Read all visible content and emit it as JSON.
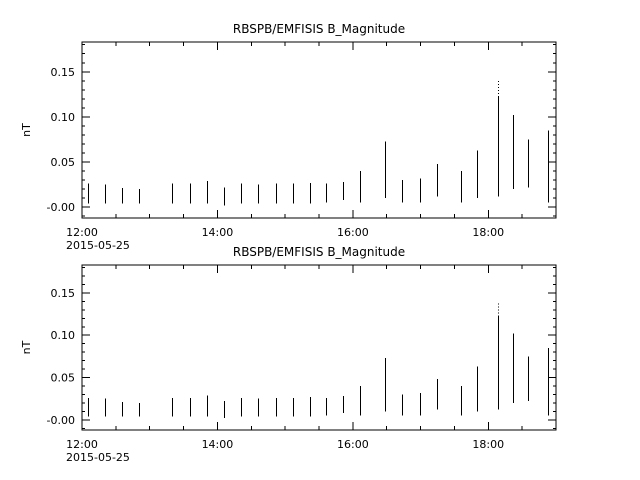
{
  "page": {
    "background": "#ffffff",
    "axis_color": "#000000",
    "bar_color": "#000000"
  },
  "chart_data": [
    {
      "type": "bar",
      "title": "RBSPB/EMFISIS  B_Magnitude",
      "ylabel": "nT",
      "date_label": "2015-05-25",
      "xlim": [
        12.0,
        19.0
      ],
      "ylim": [
        -0.012,
        0.183
      ],
      "x_ticks": [
        {
          "value": 12,
          "label": "12:00"
        },
        {
          "value": 14,
          "label": "14:00"
        },
        {
          "value": 16,
          "label": "16:00"
        },
        {
          "value": 18,
          "label": "18:00"
        }
      ],
      "x_minor_step": 0.5,
      "y_ticks": [
        {
          "value": 0.0,
          "label": "-0.00"
        },
        {
          "value": 0.05,
          "label": "0.05"
        },
        {
          "value": 0.1,
          "label": "0.10"
        },
        {
          "value": 0.15,
          "label": "0.15"
        }
      ],
      "y_minor_step": 0.01,
      "bars": [
        [
          12.09,
          0.004,
          0.026
        ],
        [
          12.34,
          0.004,
          0.025
        ],
        [
          12.59,
          0.004,
          0.021
        ],
        [
          12.84,
          0.004,
          0.02
        ],
        [
          13.33,
          0.004,
          0.026
        ],
        [
          13.6,
          0.004,
          0.026
        ],
        [
          13.85,
          0.004,
          0.029
        ],
        [
          14.1,
          0.002,
          0.022
        ],
        [
          14.35,
          0.004,
          0.026
        ],
        [
          14.6,
          0.004,
          0.025
        ],
        [
          14.86,
          0.004,
          0.026
        ],
        [
          15.11,
          0.004,
          0.026
        ],
        [
          15.36,
          0.004,
          0.027
        ],
        [
          15.61,
          0.005,
          0.026
        ],
        [
          15.86,
          0.008,
          0.028
        ],
        [
          16.11,
          0.005,
          0.04
        ],
        [
          16.48,
          0.01,
          0.073
        ],
        [
          16.73,
          0.005,
          0.03
        ],
        [
          16.99,
          0.005,
          0.032
        ],
        [
          17.24,
          0.012,
          0.048
        ],
        [
          17.59,
          0.005,
          0.04
        ],
        [
          17.84,
          0.01,
          0.063
        ],
        [
          18.14,
          0.012,
          0.122,
          0.14
        ],
        [
          18.36,
          0.02,
          0.102
        ],
        [
          18.58,
          0.022,
          0.075
        ],
        [
          18.88,
          0.005,
          0.085
        ]
      ]
    },
    {
      "type": "bar",
      "title": "RBSPB/EMFISIS  B_Magnitude",
      "ylabel": "nT",
      "date_label": "2015-05-25",
      "xlim": [
        12.0,
        19.0
      ],
      "ylim": [
        -0.012,
        0.183
      ],
      "x_ticks": [
        {
          "value": 12,
          "label": "12:00"
        },
        {
          "value": 14,
          "label": "14:00"
        },
        {
          "value": 16,
          "label": "16:00"
        },
        {
          "value": 18,
          "label": "18:00"
        }
      ],
      "x_minor_step": 0.5,
      "y_ticks": [
        {
          "value": 0.0,
          "label": "-0.00"
        },
        {
          "value": 0.05,
          "label": "0.05"
        },
        {
          "value": 0.1,
          "label": "0.10"
        },
        {
          "value": 0.15,
          "label": "0.15"
        }
      ],
      "y_minor_step": 0.01,
      "bars": [
        [
          12.09,
          0.004,
          0.026
        ],
        [
          12.34,
          0.004,
          0.025
        ],
        [
          12.59,
          0.004,
          0.021
        ],
        [
          12.84,
          0.004,
          0.02
        ],
        [
          13.33,
          0.004,
          0.026
        ],
        [
          13.6,
          0.004,
          0.026
        ],
        [
          13.85,
          0.004,
          0.029
        ],
        [
          14.1,
          0.002,
          0.022
        ],
        [
          14.35,
          0.004,
          0.026
        ],
        [
          14.6,
          0.004,
          0.025
        ],
        [
          14.86,
          0.004,
          0.026
        ],
        [
          15.11,
          0.004,
          0.026
        ],
        [
          15.36,
          0.004,
          0.027
        ],
        [
          15.61,
          0.005,
          0.026
        ],
        [
          15.86,
          0.008,
          0.028
        ],
        [
          16.11,
          0.005,
          0.04
        ],
        [
          16.48,
          0.01,
          0.073
        ],
        [
          16.73,
          0.005,
          0.03
        ],
        [
          16.99,
          0.005,
          0.032
        ],
        [
          17.24,
          0.012,
          0.048
        ],
        [
          17.59,
          0.005,
          0.04
        ],
        [
          17.84,
          0.01,
          0.063
        ],
        [
          18.14,
          0.012,
          0.122,
          0.14
        ],
        [
          18.36,
          0.02,
          0.102
        ],
        [
          18.58,
          0.022,
          0.075
        ],
        [
          18.88,
          0.005,
          0.085
        ]
      ]
    }
  ]
}
